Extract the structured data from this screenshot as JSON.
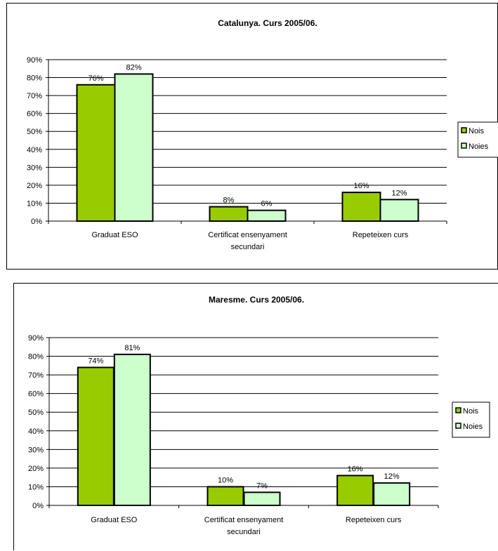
{
  "colors": {
    "nois": "#99CC00",
    "noies": "#CCFFCC",
    "stroke": "#000000"
  },
  "charts": [
    {
      "title": "Catalunya. Curs 2005/06.",
      "legend": [
        {
          "label": "Nois",
          "color": "#99CC00"
        },
        {
          "label": "Noies",
          "color": "#CCFFCC"
        }
      ]
    },
    {
      "title": "Maresme. Curs 2005/06.",
      "legend": [
        {
          "label": "Nois",
          "color": "#99CC00"
        },
        {
          "label": "Noies",
          "color": "#CCFFCC"
        }
      ]
    }
  ],
  "chart_data": [
    {
      "type": "bar",
      "title": "Catalunya. Curs 2005/06.",
      "categories": [
        "Graduat ESO",
        "Certificat ensenyament secundari",
        "Repeteixen curs"
      ],
      "category_lines": [
        [
          "Graduat ESO"
        ],
        [
          "Certificat ensenyament",
          "secundari"
        ],
        [
          "Repeteixen curs"
        ]
      ],
      "series": [
        {
          "name": "Nois",
          "values": [
            76,
            8,
            16
          ],
          "labels": [
            "76%",
            "8%",
            "16%"
          ]
        },
        {
          "name": "Noies",
          "values": [
            82,
            6,
            12
          ],
          "labels": [
            "82%",
            "6%",
            "12%"
          ]
        }
      ],
      "ylim": [
        0,
        90
      ],
      "yticks": [
        "0%",
        "10%",
        "20%",
        "30%",
        "40%",
        "50%",
        "60%",
        "70%",
        "80%",
        "90%"
      ],
      "grid": true,
      "legend_position": "right"
    },
    {
      "type": "bar",
      "title": "Maresme. Curs 2005/06.",
      "categories": [
        "Graduat ESO",
        "Certificat ensenyament secundari",
        "Repeteixen curs"
      ],
      "category_lines": [
        [
          "Graduat ESO"
        ],
        [
          "Certificat ensenyament",
          "secundari"
        ],
        [
          "Repeteixen curs"
        ]
      ],
      "series": [
        {
          "name": "Nois",
          "values": [
            74,
            10,
            16
          ],
          "labels": [
            "74%",
            "10%",
            "16%"
          ]
        },
        {
          "name": "Noies",
          "values": [
            81,
            7,
            12
          ],
          "labels": [
            "81%",
            "7%",
            "12%"
          ]
        }
      ],
      "ylim": [
        0,
        90
      ],
      "yticks": [
        "0%",
        "10%",
        "20%",
        "30%",
        "40%",
        "50%",
        "60%",
        "70%",
        "80%",
        "90%"
      ],
      "grid": true,
      "legend_position": "right"
    }
  ]
}
